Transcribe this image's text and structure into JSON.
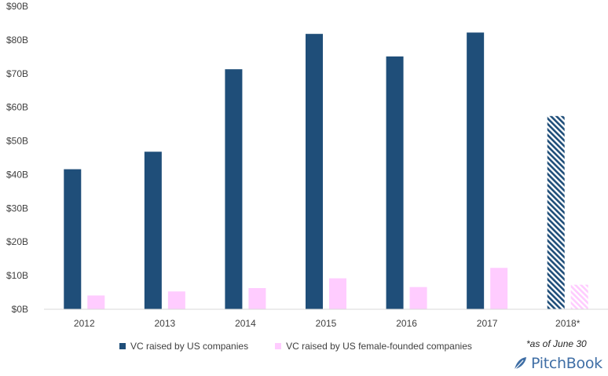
{
  "chart_data": {
    "type": "bar",
    "categories": [
      "2012",
      "2013",
      "2014",
      "2015",
      "2016",
      "2017",
      "2018*"
    ],
    "series": [
      {
        "name": "VC raised by US companies",
        "values": [
          41.6,
          46.8,
          71.3,
          81.8,
          75.1,
          82.2,
          57.4
        ],
        "color": "#1f4e79"
      },
      {
        "name": "VC raised by US female-founded companies",
        "values": [
          4.1,
          5.3,
          6.3,
          9.2,
          6.6,
          12.3,
          7.3
        ],
        "color": "#ffccff"
      }
    ],
    "hatched_categories": [
      "2018*"
    ],
    "ylim": [
      0,
      90
    ],
    "yticks": [
      "$0B",
      "$10B",
      "$20B",
      "$30B",
      "$40B",
      "$50B",
      "$60B",
      "$70B",
      "$80B",
      "$90B"
    ],
    "ytick_values": [
      0,
      10,
      20,
      30,
      40,
      50,
      60,
      70,
      80,
      90
    ],
    "legend_position": "bottom",
    "grid": false,
    "footnote": "*as of June 30"
  },
  "brand": {
    "name": "PitchBook",
    "icon": "pitchbook-leaf-icon",
    "color": "#3f6ea5"
  }
}
